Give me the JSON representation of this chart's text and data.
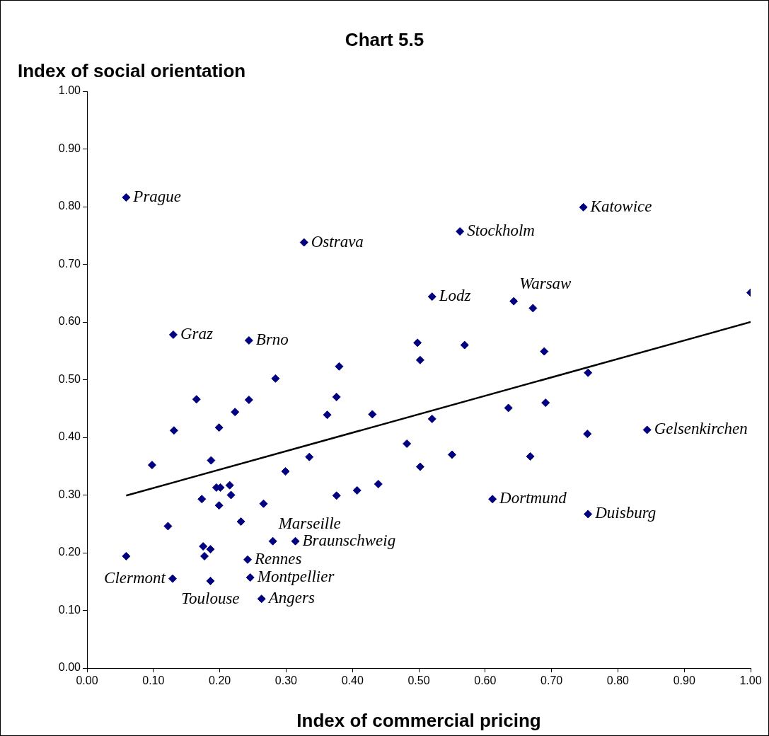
{
  "chart_data": {
    "type": "scatter",
    "title": "Chart 5.5",
    "xlabel": "Index of commercial pricing",
    "ylabel": "Index of social orientation",
    "xlim": [
      0,
      1
    ],
    "ylim": [
      0,
      1
    ],
    "xticks": [
      {
        "value": 0,
        "label": "0.00"
      },
      {
        "value": 0.1,
        "label": "0.10"
      },
      {
        "value": 0.2,
        "label": "0.20"
      },
      {
        "value": 0.3,
        "label": "0.30"
      },
      {
        "value": 0.4,
        "label": "0.40"
      },
      {
        "value": 0.5,
        "label": "0.50"
      },
      {
        "value": 0.6,
        "label": "0.60"
      },
      {
        "value": 0.7,
        "label": "0.70"
      },
      {
        "value": 0.8,
        "label": "0.80"
      },
      {
        "value": 0.9,
        "label": "0.90"
      },
      {
        "value": 1,
        "label": "1.00"
      }
    ],
    "yticks": [
      {
        "value": 0,
        "label": "0.00"
      },
      {
        "value": 0.1,
        "label": "0.10"
      },
      {
        "value": 0.2,
        "label": "0.20"
      },
      {
        "value": 0.3,
        "label": "0.30"
      },
      {
        "value": 0.4,
        "label": "0.40"
      },
      {
        "value": 0.5,
        "label": "0.50"
      },
      {
        "value": 0.6,
        "label": "0.60"
      },
      {
        "value": 0.7,
        "label": "0.70"
      },
      {
        "value": 0.8,
        "label": "0.80"
      },
      {
        "value": 0.9,
        "label": "0.90"
      },
      {
        "value": 1,
        "label": "1.00"
      }
    ],
    "grid": false,
    "legend": false,
    "series": [
      {
        "type": "scatter",
        "color": "#000080",
        "marker": "diamond",
        "x": [
          0.059,
          0.327,
          0.562,
          0.748,
          0.52,
          0.643,
          0.672,
          1.0,
          0.13,
          0.244,
          0.498,
          0.569,
          0.502,
          0.689,
          0.755,
          0.38,
          0.284,
          0.376,
          0.165,
          0.244,
          0.223,
          0.362,
          0.43,
          0.52,
          0.635,
          0.691,
          0.131,
          0.199,
          0.754,
          0.844,
          0.482,
          0.55,
          0.668,
          0.335,
          0.098,
          0.187,
          0.502,
          0.299,
          0.195,
          0.201,
          0.215,
          0.217,
          0.173,
          0.199,
          0.266,
          0.376,
          0.407,
          0.439,
          0.611,
          0.755,
          0.232,
          0.122,
          0.28,
          0.314,
          0.175,
          0.186,
          0.059,
          0.177,
          0.242,
          0.129,
          0.186,
          0.246,
          0.263
        ],
        "values": [
          0.816,
          0.738,
          0.757,
          0.799,
          0.644,
          0.636,
          0.624,
          0.651,
          0.578,
          0.568,
          0.564,
          0.56,
          0.534,
          0.549,
          0.512,
          0.523,
          0.502,
          0.47,
          0.466,
          0.465,
          0.444,
          0.439,
          0.44,
          0.432,
          0.451,
          0.46,
          0.412,
          0.417,
          0.406,
          0.413,
          0.389,
          0.37,
          0.367,
          0.366,
          0.352,
          0.36,
          0.349,
          0.341,
          0.313,
          0.313,
          0.317,
          0.3,
          0.293,
          0.282,
          0.285,
          0.299,
          0.308,
          0.319,
          0.293,
          0.267,
          0.254,
          0.246,
          0.22,
          0.22,
          0.211,
          0.206,
          0.194,
          0.194,
          0.188,
          0.155,
          0.151,
          0.157,
          0.12
        ]
      },
      {
        "type": "line",
        "color": "#000000",
        "marker": "none",
        "line_style": "solid",
        "x": [
          0.059,
          1.0
        ],
        "values": [
          0.299,
          0.6
        ]
      }
    ],
    "annotations": [
      {
        "text": "Prague",
        "x": 0.059,
        "y": 0.816
      },
      {
        "text": "Ostrava",
        "x": 0.327,
        "y": 0.738
      },
      {
        "text": "Stockholm",
        "x": 0.562,
        "y": 0.757
      },
      {
        "text": "Katowice",
        "x": 0.748,
        "y": 0.799
      },
      {
        "text": "Lodz",
        "x": 0.52,
        "y": 0.644
      },
      {
        "text": "Warsaw",
        "x": 0.643,
        "y": 0.636
      },
      {
        "text": "Graz",
        "x": 0.13,
        "y": 0.578
      },
      {
        "text": "Brno",
        "x": 0.244,
        "y": 0.568
      },
      {
        "text": "Gelsenkirchen",
        "x": 0.844,
        "y": 0.413
      },
      {
        "text": "Dortmund",
        "x": 0.611,
        "y": 0.293
      },
      {
        "text": "Duisburg",
        "x": 0.755,
        "y": 0.267
      },
      {
        "text": "Marseille",
        "x": 0.28,
        "y": 0.22
      },
      {
        "text": "Braunschweig",
        "x": 0.314,
        "y": 0.22
      },
      {
        "text": "Rennes",
        "x": 0.242,
        "y": 0.188
      },
      {
        "text": "Clermont",
        "x": 0.129,
        "y": 0.155
      },
      {
        "text": "Toulouse",
        "x": 0.186,
        "y": 0.151
      },
      {
        "text": "Montpellier",
        "x": 0.246,
        "y": 0.157
      },
      {
        "text": "Angers",
        "x": 0.263,
        "y": 0.12
      }
    ]
  }
}
